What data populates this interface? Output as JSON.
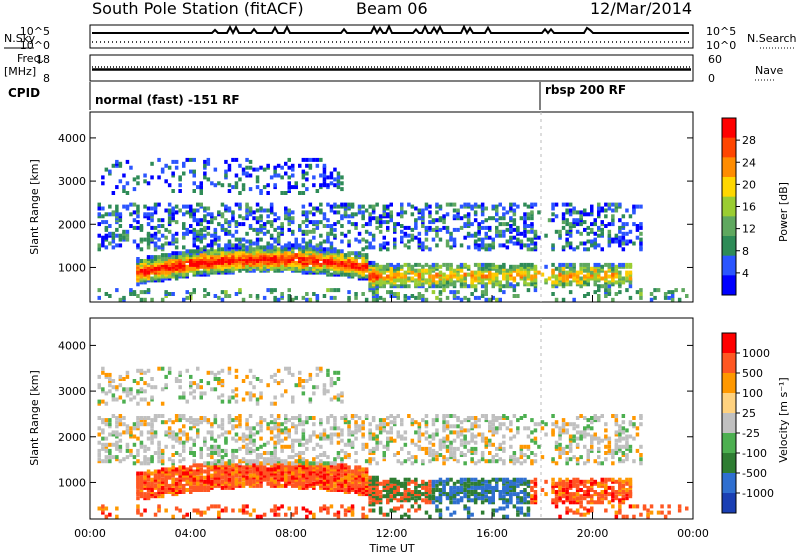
{
  "header": {
    "title": "South Pole Station (fitACF)",
    "beam": "Beam 06",
    "date": "12/Mar/2014"
  },
  "strips": {
    "nsky_label": "N.Sky",
    "nsearch_label": "N.Search",
    "freq_label_line1": "Freq.",
    "freq_label_line2": "[MHz]",
    "nave_label": "Nave",
    "cpid_label": "CPID",
    "left_ticks_noise": [
      "10^5",
      "10^0"
    ],
    "right_ticks_noise": [
      "10^5",
      "10^0"
    ],
    "left_ticks_freq": [
      "18",
      "8"
    ],
    "right_ticks_nave": [
      "60",
      "0"
    ],
    "cpid_segments": [
      {
        "text": "normal (fast) -151 RF",
        "start_hour": 0
      },
      {
        "text": "rbsp 200 RF",
        "start_hour": 18
      }
    ]
  },
  "chart_data": [
    {
      "type": "heatmap",
      "name": "Power",
      "xlabel": "",
      "ylabel": "Slant Range [km]",
      "xlim_hours": [
        0,
        24
      ],
      "ylim": [
        200,
        4600
      ],
      "yticks": [
        1000,
        2000,
        3000,
        4000
      ],
      "colorbar_label": "Power [dB]",
      "colorbar_ticks": [
        "28",
        "24",
        "20",
        "16",
        "12",
        "8",
        "4"
      ],
      "colorbar_colors": [
        "#0000ff",
        "#2b55ff",
        "#2e8b57",
        "#5fa85f",
        "#9acd32",
        "#ffd700",
        "#ff8c00",
        "#ff4500",
        "#ff0000"
      ]
    },
    {
      "type": "heatmap",
      "name": "Velocity",
      "xlabel": "Time UT",
      "ylabel": "Slant Range [km]",
      "xlim_hours": [
        0,
        24
      ],
      "ylim": [
        200,
        4600
      ],
      "yticks": [
        1000,
        2000,
        3000,
        4000
      ],
      "xticks": [
        "00:00",
        "04:00",
        "08:00",
        "12:00",
        "16:00",
        "20:00",
        "00:00"
      ],
      "colorbar_label": "Velocity [m s⁻¹]",
      "colorbar_ticks": [
        "1000",
        "500",
        "100",
        "25",
        "-25",
        "-100",
        "-500",
        "-1000"
      ],
      "colorbar_colors": [
        "#1a3fb3",
        "#2f6fd0",
        "#2e7d32",
        "#4caf50",
        "#c0c0c0",
        "#ffd27f",
        "#ff9800",
        "#ff5722",
        "#ff0000"
      ]
    }
  ]
}
